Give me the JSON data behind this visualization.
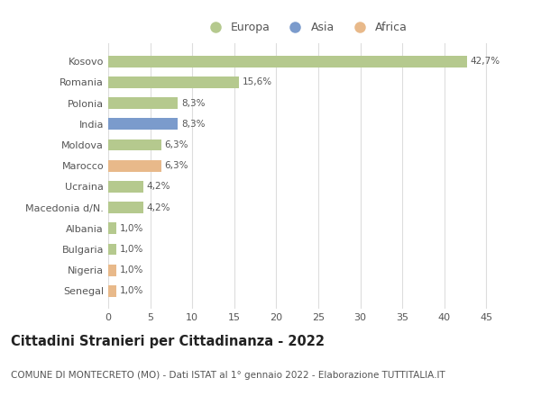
{
  "categories": [
    "Kosovo",
    "Romania",
    "Polonia",
    "India",
    "Moldova",
    "Marocco",
    "Ucraina",
    "Macedonia d/N.",
    "Albania",
    "Bulgaria",
    "Nigeria",
    "Senegal"
  ],
  "values": [
    42.7,
    15.6,
    8.3,
    8.3,
    6.3,
    6.3,
    4.2,
    4.2,
    1.0,
    1.0,
    1.0,
    1.0
  ],
  "labels": [
    "42,7%",
    "15,6%",
    "8,3%",
    "8,3%",
    "6,3%",
    "6,3%",
    "4,2%",
    "4,2%",
    "1,0%",
    "1,0%",
    "1,0%",
    "1,0%"
  ],
  "continents": [
    "Europa",
    "Europa",
    "Europa",
    "Asia",
    "Europa",
    "Africa",
    "Europa",
    "Europa",
    "Europa",
    "Europa",
    "Africa",
    "Africa"
  ],
  "colors": {
    "Europa": "#b5c98e",
    "Asia": "#7b9bcc",
    "Africa": "#e8b98a"
  },
  "legend": [
    {
      "label": "Europa",
      "color": "#b5c98e"
    },
    {
      "label": "Asia",
      "color": "#7b9bcc"
    },
    {
      "label": "Africa",
      "color": "#e8b98a"
    }
  ],
  "title": "Cittadini Stranieri per Cittadinanza - 2022",
  "subtitle": "COMUNE DI MONTECRETO (MO) - Dati ISTAT al 1° gennaio 2022 - Elaborazione TUTTITALIA.IT",
  "xlim": [
    0,
    47
  ],
  "xticks": [
    0,
    5,
    10,
    15,
    20,
    25,
    30,
    35,
    40,
    45
  ],
  "background_color": "#ffffff",
  "grid_color": "#dddddd",
  "bar_height": 0.55,
  "label_fontsize": 7.5,
  "title_fontsize": 10.5,
  "subtitle_fontsize": 7.5,
  "tick_fontsize": 8,
  "ytick_fontsize": 8
}
